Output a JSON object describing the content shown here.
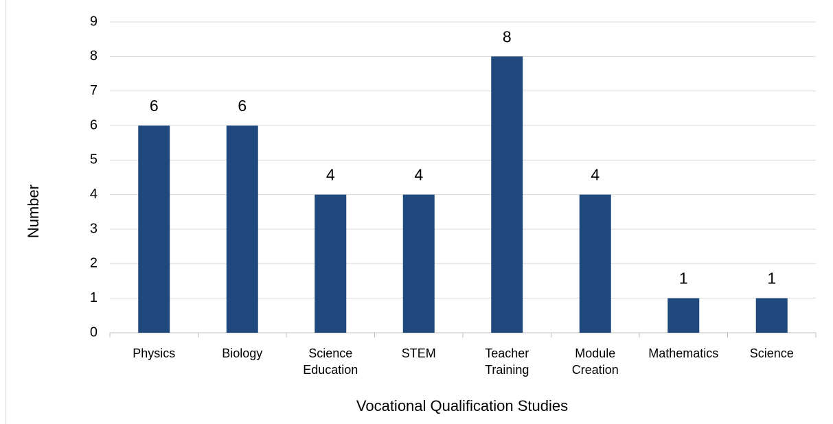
{
  "chart_data": {
    "type": "bar",
    "x_label": "Vocational Qualification Studies",
    "y_label": "Number",
    "categories": [
      "Physics",
      "Biology",
      "Science Education",
      "STEM",
      "Teacher Training",
      "Module Creation",
      "Mathematics",
      "Science"
    ],
    "values": [
      6,
      6,
      4,
      4,
      8,
      4,
      1,
      1
    ],
    "color": "#1f497d",
    "ylim": [
      0,
      9
    ],
    "yticks": [
      0,
      1,
      2,
      3,
      4,
      5,
      6,
      7,
      8,
      9
    ],
    "grid": true
  }
}
